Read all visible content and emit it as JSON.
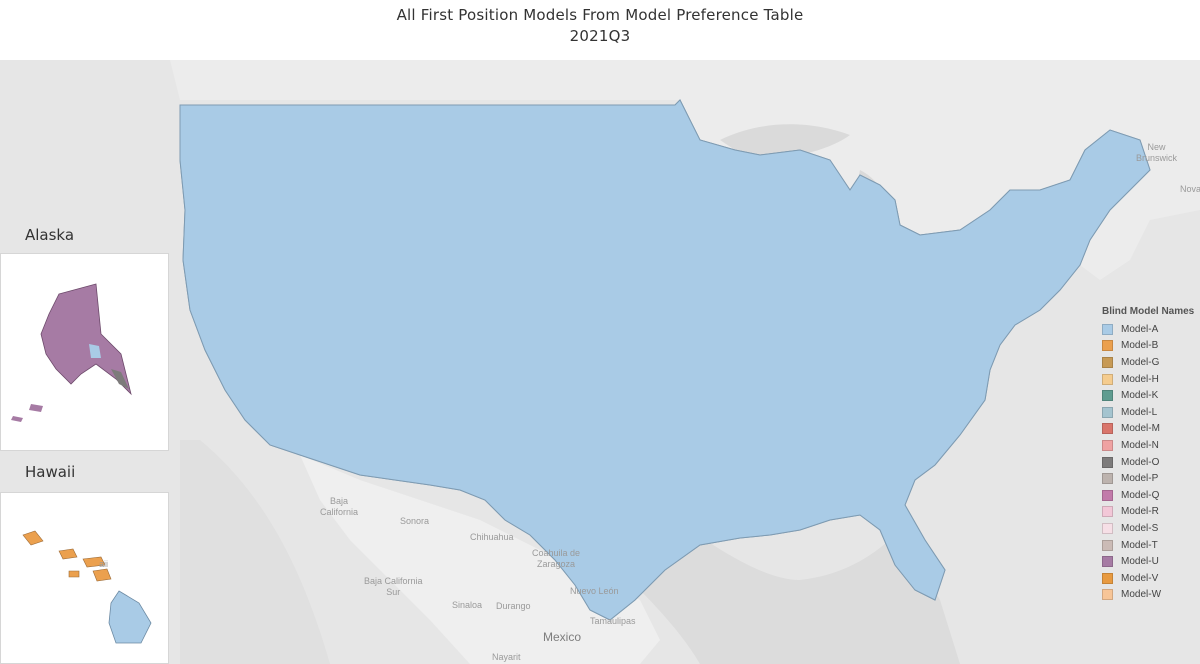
{
  "title": {
    "line1": "All First Position Models From Model Preference Table",
    "line2": "2021Q3"
  },
  "insets": {
    "alaska_label": "Alaska",
    "hawaii_label": "Hawaii"
  },
  "legend": {
    "title": "Blind Model Names",
    "items": [
      {
        "label": "Model-A",
        "color": "#a9cbe6"
      },
      {
        "label": "Model-B",
        "color": "#eba04e"
      },
      {
        "label": "Model-G",
        "color": "#c79a55"
      },
      {
        "label": "Model-H",
        "color": "#f5cc8e"
      },
      {
        "label": "Model-K",
        "color": "#5f9c90"
      },
      {
        "label": "Model-L",
        "color": "#a4c4cf"
      },
      {
        "label": "Model-M",
        "color": "#d9756b"
      },
      {
        "label": "Model-N",
        "color": "#efa2a2"
      },
      {
        "label": "Model-O",
        "color": "#7d7b7b"
      },
      {
        "label": "Model-P",
        "color": "#bdb3ae"
      },
      {
        "label": "Model-Q",
        "color": "#c27aaa"
      },
      {
        "label": "Model-R",
        "color": "#f2c7d7"
      },
      {
        "label": "Model-S",
        "color": "#f6dfe6"
      },
      {
        "label": "Model-T",
        "color": "#cbbbb6"
      },
      {
        "label": "Model-U",
        "color": "#a67ba4"
      },
      {
        "label": "Model-V",
        "color": "#e89a40"
      },
      {
        "label": "Model-W",
        "color": "#f7c597"
      }
    ]
  },
  "places": [
    {
      "id": "baja-california",
      "label": "Baja\nCalifornia"
    },
    {
      "id": "sonora",
      "label": "Sonora"
    },
    {
      "id": "chihuahua",
      "label": "Chihuahua"
    },
    {
      "id": "coahuila",
      "label": "Coahuila de\nZaragoza"
    },
    {
      "id": "baja-california-sur",
      "label": "Baja California\nSur"
    },
    {
      "id": "nuevo-leon",
      "label": "Nuevo León"
    },
    {
      "id": "sinaloa",
      "label": "Sinaloa"
    },
    {
      "id": "durango",
      "label": "Durango"
    },
    {
      "id": "tamaulipas",
      "label": "Tamaulipas"
    },
    {
      "id": "mexico",
      "label": "Mexico"
    },
    {
      "id": "nayarit",
      "label": "Nayarit"
    },
    {
      "id": "new-brunswick",
      "label": "New\nBrunswick"
    },
    {
      "id": "nova",
      "label": "Nova"
    },
    {
      "id": "hawaii-ghost",
      "label": "aii"
    }
  ]
}
